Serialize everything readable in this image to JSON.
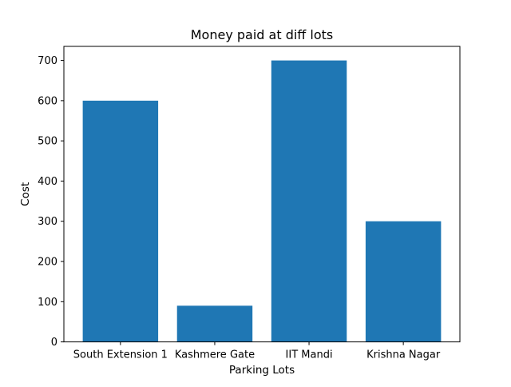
{
  "colors": {
    "bar": "#1f77b4",
    "axis": "#000000",
    "background": "#ffffff"
  },
  "chart_data": {
    "type": "bar",
    "title": "Money paid at diff lots",
    "xlabel": "Parking Lots",
    "ylabel": "Cost",
    "categories": [
      "South Extension 1",
      "Kashmere Gate",
      "IIT Mandi",
      "Krishna Nagar"
    ],
    "values": [
      600,
      90,
      700,
      300
    ],
    "ylim": [
      0,
      735
    ],
    "yticks": [
      0,
      100,
      200,
      300,
      400,
      500,
      600,
      700
    ],
    "grid": false,
    "legend": "none"
  }
}
